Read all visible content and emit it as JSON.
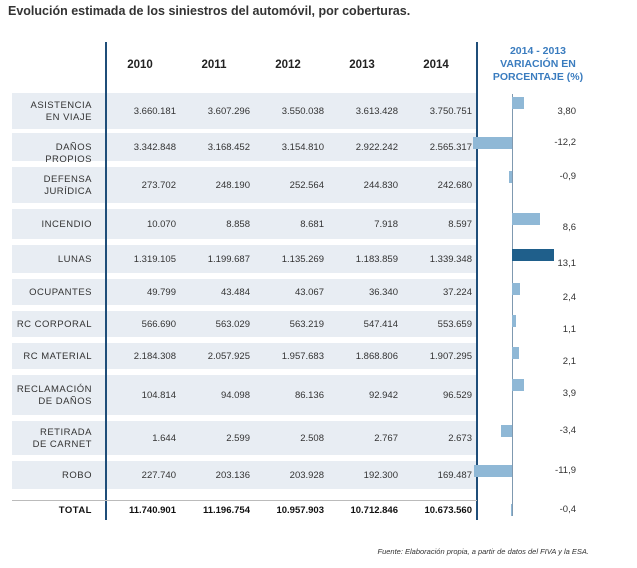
{
  "title": "Evolución estimada de los siniestros del automóvil, por coberturas.",
  "source": "Fuente: Elaboración propia, a partir de datos del FIVA y la ESA.",
  "chart_data": {
    "type": "table",
    "title": "Evolución estimada de los siniestros del automóvil, por coberturas.",
    "years": [
      "2010",
      "2011",
      "2012",
      "2013",
      "2014"
    ],
    "variation_header": [
      "2014 - 2013",
      "VARIACIÓN EN",
      "PORCENTAJE (%)"
    ],
    "rows": [
      {
        "label": [
          "ASISTENCIA",
          "EN VIAJE"
        ],
        "values": [
          "3.660.181",
          "3.607.296",
          "3.550.038",
          "3.613.428",
          "3.750.751"
        ],
        "pct_text": "3,80",
        "pct": 3.8
      },
      {
        "label": [
          "DAÑOS PROPIOS"
        ],
        "values": [
          "3.342.848",
          "3.168.452",
          "3.154.810",
          "2.922.242",
          "2.565.317"
        ],
        "pct_text": "-12,2",
        "pct": -12.2
      },
      {
        "label": [
          "DEFENSA",
          "JURÍDICA"
        ],
        "values": [
          "273.702",
          "248.190",
          "252.564",
          "244.830",
          "242.680"
        ],
        "pct_text": "-0,9",
        "pct": -0.9
      },
      {
        "label": [
          "INCENDIO"
        ],
        "values": [
          "10.070",
          "8.858",
          "8.681",
          "7.918",
          "8.597"
        ],
        "pct_text": "8,6",
        "pct": 8.6
      },
      {
        "label": [
          "LUNAS"
        ],
        "values": [
          "1.319.105",
          "1.199.687",
          "1.135.269",
          "1.183.859",
          "1.339.348"
        ],
        "pct_text": "13,1",
        "pct": 13.1,
        "highlight": true
      },
      {
        "label": [
          "OCUPANTES"
        ],
        "values": [
          "49.799",
          "43.484",
          "43.067",
          "36.340",
          "37.224"
        ],
        "pct_text": "2,4",
        "pct": 2.4
      },
      {
        "label": [
          "RC CORPORAL"
        ],
        "values": [
          "566.690",
          "563.029",
          "563.219",
          "547.414",
          "553.659"
        ],
        "pct_text": "1,1",
        "pct": 1.1
      },
      {
        "label": [
          "RC MATERIAL"
        ],
        "values": [
          "2.184.308",
          "2.057.925",
          "1.957.683",
          "1.868.806",
          "1.907.295"
        ],
        "pct_text": "2,1",
        "pct": 2.1
      },
      {
        "label": [
          "RECLAMACIÓN",
          "DE DAÑOS"
        ],
        "values": [
          "104.814",
          "94.098",
          "86.136",
          "92.942",
          "96.529"
        ],
        "pct_text": "3,9",
        "pct": 3.9
      },
      {
        "label": [
          "RETIRADA",
          "DE CARNET"
        ],
        "values": [
          "1.644",
          "2.599",
          "2.508",
          "2.767",
          "2.673"
        ],
        "pct_text": "-3,4",
        "pct": -3.4
      },
      {
        "label": [
          "ROBO"
        ],
        "values": [
          "227.740",
          "203.136",
          "203.928",
          "192.300",
          "169.487"
        ],
        "pct_text": "-11,9",
        "pct": -11.9
      }
    ],
    "total": {
      "label": "TOTAL",
      "values": [
        "11.740.901",
        "11.196.754",
        "10.957.903",
        "10.712.846",
        "10.673.560"
      ],
      "pct_text": "-0,4",
      "pct": -0.4
    }
  },
  "colors": {
    "bar": "#8fb8d6",
    "bar_highlight": "#1f5f8b",
    "header_accent": "#3a7cbf",
    "row_bg": "#e8edf3",
    "rule": "#1f4e79"
  }
}
